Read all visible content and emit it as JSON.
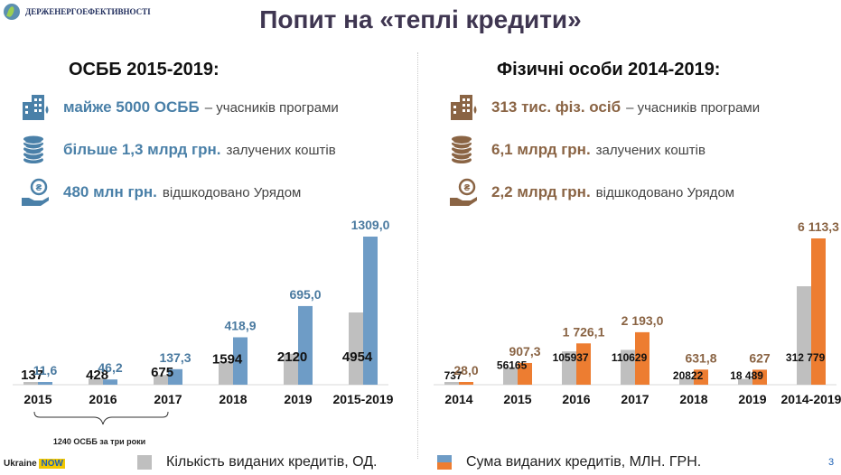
{
  "header": {
    "logo_text": "ДЕРЖЕНЕРГОЕФЕКТИВНОСТІ",
    "title": "Попит на «теплі кредити»"
  },
  "left": {
    "title": "ОСББ 2015-2019:",
    "stats": [
      {
        "icon": "building-icon",
        "strong": "майже 5000 ОСББ",
        "rest": "– учасників програми"
      },
      {
        "icon": "coins-icon",
        "strong": "більше 1,3 млрд грн.",
        "rest": "залучених коштів"
      },
      {
        "icon": "hand-coin-icon",
        "strong": "480 млн грн.",
        "rest": "відшкодовано Урядом"
      }
    ]
  },
  "right": {
    "title": "Фізичні особи 2014-2019:",
    "stats": [
      {
        "icon": "building-icon",
        "strong": "313 тис. фіз. осіб",
        "rest": "– учасників програми"
      },
      {
        "icon": "coins-icon",
        "strong": "6,1 млрд грн.",
        "rest": "залучених коштів"
      },
      {
        "icon": "hand-coin-icon",
        "strong": "2,2 млрд грн.",
        "rest": "відшкодовано Урядом"
      }
    ]
  },
  "colors": {
    "gray": "#bfbfbf",
    "blue": "#6e9cc6",
    "orange": "#ed7d31",
    "blue_text": "#4a7aa0",
    "orange_text": "#8a6444"
  },
  "chart_data": [
    {
      "type": "bar",
      "categories": [
        "2015",
        "2016",
        "2017",
        "2018",
        "2019",
        "2015-2019"
      ],
      "series": [
        {
          "name": "Кількість виданих кредитів, ОД.",
          "values": [
            137,
            428,
            675,
            1594,
            2120,
            4954
          ],
          "labels": [
            "137",
            "428",
            "675",
            "1594",
            "2120",
            "4954"
          ]
        },
        {
          "name": "Сума виданих кредитів, МЛН. ГРН.",
          "values": [
            11.6,
            46.2,
            137.3,
            418.9,
            695.0,
            1309.0
          ],
          "labels": [
            "11,6",
            "46,2",
            "137,3",
            "418,9",
            "695,0",
            "1309,0"
          ]
        }
      ],
      "annotation": "1240 ОСББ за три роки"
    },
    {
      "type": "bar",
      "categories": [
        "2014",
        "2015",
        "2016",
        "2017",
        "2018",
        "2019",
        "2014-2019"
      ],
      "series": [
        {
          "name": "Кількість виданих кредитів, ОД.",
          "values": [
            737,
            56165,
            105937,
            110629,
            20822,
            18489,
            312779
          ],
          "labels": [
            "737",
            "56165",
            "105937",
            "110629",
            "20822",
            "18 489",
            "312 779"
          ]
        },
        {
          "name": "Сума виданих кредитів, МЛН. ГРН.",
          "values": [
            28.0,
            907.3,
            1726.1,
            2193.0,
            631.8,
            627,
            6113.3
          ],
          "labels": [
            "28,0",
            "907,3",
            "1 726,1",
            "2 193,0",
            "631,8",
            "627",
            "6 113,3"
          ]
        }
      ]
    }
  ],
  "legend": {
    "count": "Кількість виданих кредитів, ОД.",
    "sum": "Сума виданих кредитів, МЛН. ГРН."
  },
  "footer": {
    "brand": "Ukraine",
    "brand_now": "NOW",
    "slide_number": "3"
  }
}
